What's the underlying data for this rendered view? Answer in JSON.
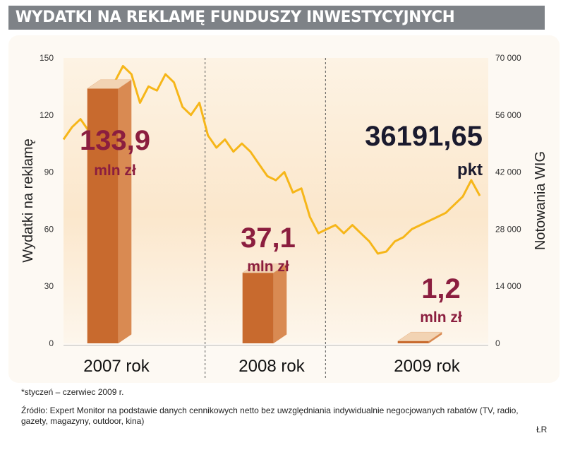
{
  "title": "WYDATKI NA REKLAMĘ FUNDUSZY INWESTYCYJNYCH",
  "footnote": "*styczeń – czerwiec 2009 r.",
  "source": "Źródło: Expert Monitor na podstawie danych cennikowych netto bez uwzględniania indywidualnie negocjowanych rabatów (TV, radio, gazety, magazyny, outdoor, kina)",
  "signature": "ŁR",
  "colors": {
    "bar_front": "#c86a2e",
    "bar_side": "#d98a52",
    "bar_top": "#f2d3b3",
    "wig_line": "#f6b619",
    "value_label": "#8b1e3f",
    "wig_label": "#1a1a2e",
    "panel": "#fdf9f3",
    "title_bg": "#7e8287"
  },
  "chart_data": {
    "type": "bar",
    "left_axis": {
      "label": "Wydatki na reklamę",
      "ylim": [
        0,
        150
      ],
      "ticks": [
        "0",
        "30",
        "60",
        "90",
        "120",
        "150"
      ]
    },
    "right_axis": {
      "label": "Notowania WIG",
      "ylim": [
        0,
        70000
      ],
      "ticks": [
        "0",
        "14 000",
        "28 000",
        "42 000",
        "56 000",
        "70 000"
      ]
    },
    "categories": [
      "2007 rok",
      "2008 rok",
      "2009 rok"
    ],
    "values": [
      133.9,
      37.1,
      1.2
    ],
    "value_labels": [
      {
        "value": "133,9",
        "unit": "mln zł"
      },
      {
        "value": "37,1",
        "unit": "mln zł"
      },
      {
        "value": "1,2",
        "unit": "mln zł"
      }
    ],
    "wig_series": {
      "last_value_label": "36191,65",
      "unit": "pkt",
      "points": [
        [
          0.0,
          50000
        ],
        [
          0.02,
          53000
        ],
        [
          0.04,
          55000
        ],
        [
          0.06,
          52000
        ],
        [
          0.08,
          57000
        ],
        [
          0.1,
          60000
        ],
        [
          0.12,
          64000
        ],
        [
          0.14,
          68000
        ],
        [
          0.16,
          66000
        ],
        [
          0.18,
          59000
        ],
        [
          0.2,
          63000
        ],
        [
          0.22,
          62000
        ],
        [
          0.24,
          66000
        ],
        [
          0.26,
          64000
        ],
        [
          0.28,
          58000
        ],
        [
          0.3,
          56000
        ],
        [
          0.32,
          59000
        ],
        [
          0.34,
          51000
        ],
        [
          0.36,
          48000
        ],
        [
          0.38,
          50000
        ],
        [
          0.4,
          47000
        ],
        [
          0.42,
          49000
        ],
        [
          0.44,
          47000
        ],
        [
          0.46,
          44000
        ],
        [
          0.48,
          41000
        ],
        [
          0.5,
          40000
        ],
        [
          0.52,
          42000
        ],
        [
          0.54,
          37000
        ],
        [
          0.56,
          38000
        ],
        [
          0.58,
          31000
        ],
        [
          0.6,
          27000
        ],
        [
          0.62,
          28000
        ],
        [
          0.64,
          29000
        ],
        [
          0.66,
          27000
        ],
        [
          0.68,
          29000
        ],
        [
          0.7,
          27000
        ],
        [
          0.72,
          25000
        ],
        [
          0.74,
          22000
        ],
        [
          0.76,
          22500
        ],
        [
          0.78,
          25000
        ],
        [
          0.8,
          26000
        ],
        [
          0.82,
          28000
        ],
        [
          0.84,
          29000
        ],
        [
          0.86,
          30000
        ],
        [
          0.88,
          31000
        ],
        [
          0.9,
          32000
        ],
        [
          0.92,
          34000
        ],
        [
          0.94,
          36000
        ],
        [
          0.96,
          40000
        ],
        [
          0.98,
          36191.65
        ]
      ]
    },
    "grid": "vertical dashed separators between years"
  }
}
